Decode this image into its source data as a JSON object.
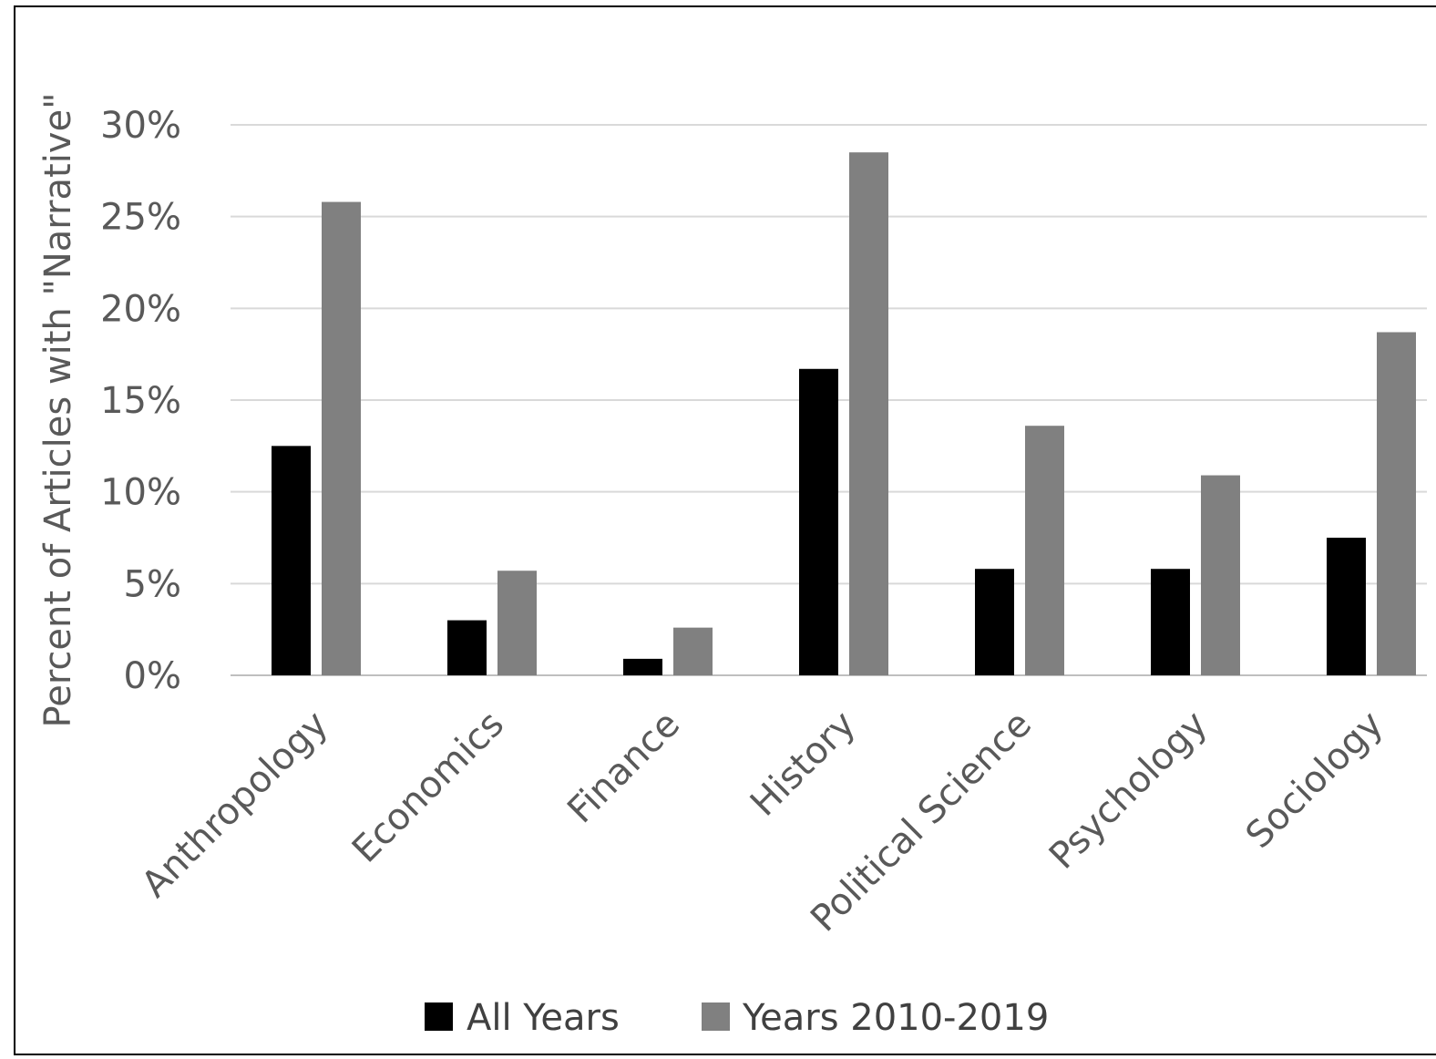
{
  "chart_data": {
    "type": "bar",
    "title": "",
    "xlabel": "",
    "ylabel": "Percent of Articles with \"Narrative\"",
    "categories": [
      "Anthropology",
      "Economics",
      "Finance",
      "History",
      "Political Science",
      "Psychology",
      "Sociology"
    ],
    "series": [
      {
        "name": "All Years",
        "color": "#000000",
        "values": [
          12.5,
          3.0,
          0.9,
          16.7,
          5.8,
          5.8,
          7.5
        ]
      },
      {
        "name": "Years 2010-2019",
        "color": "#808080",
        "values": [
          25.8,
          5.7,
          2.6,
          28.5,
          13.6,
          10.9,
          18.7
        ]
      }
    ],
    "ylim": [
      0,
      30
    ],
    "yticks": [
      {
        "value": 0,
        "label": "0%"
      },
      {
        "value": 5,
        "label": "5%"
      },
      {
        "value": 10,
        "label": "10%"
      },
      {
        "value": 15,
        "label": "15%"
      },
      {
        "value": 20,
        "label": "20%"
      },
      {
        "value": 25,
        "label": "25%"
      },
      {
        "value": 30,
        "label": "30%"
      }
    ],
    "grid": true,
    "legend_position": "bottom"
  }
}
